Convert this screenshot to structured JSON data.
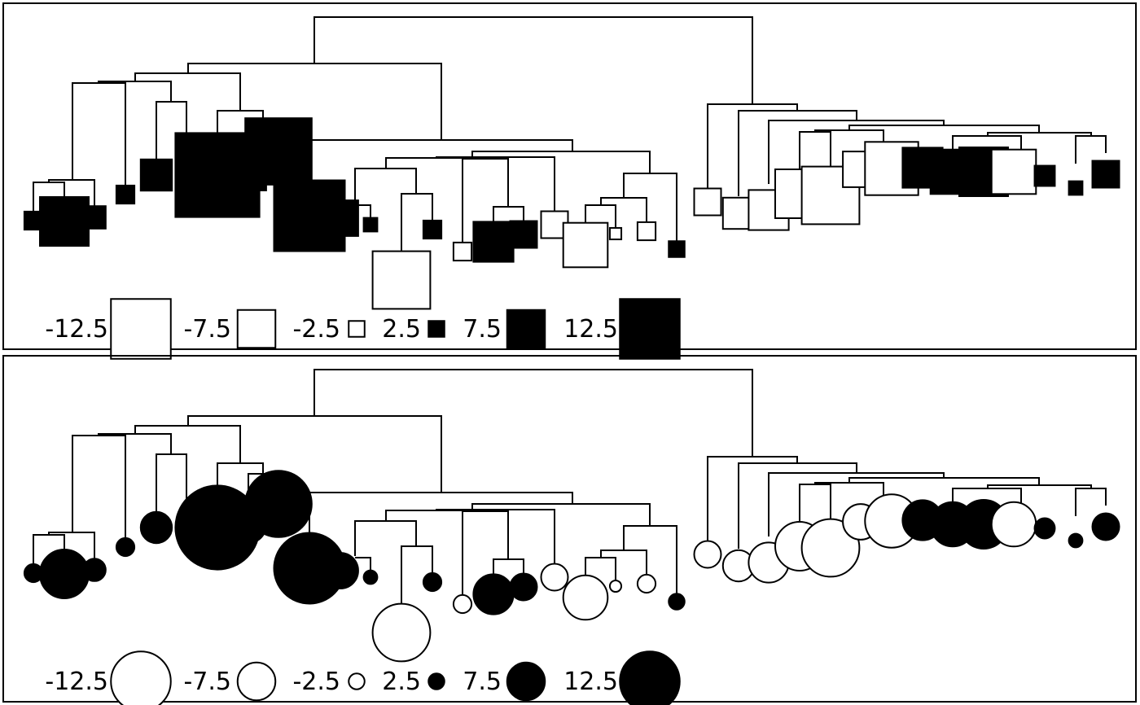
{
  "panels": [
    {
      "marker_shape": "square",
      "legend": [
        {
          "label": "-12.5",
          "value": -12.5
        },
        {
          "label": "-7.5",
          "value": -7.5
        },
        {
          "label": "-2.5",
          "value": -2.5
        },
        {
          "label": "2.5",
          "value": 2.5
        },
        {
          "label": "7.5",
          "value": 7.5
        },
        {
          "label": "12.5",
          "value": 12.5
        }
      ]
    },
    {
      "marker_shape": "circle",
      "legend": [
        {
          "label": "-12.5",
          "value": -12.5
        },
        {
          "label": "-7.5",
          "value": -7.5
        },
        {
          "label": "-2.5",
          "value": -2.5
        },
        {
          "label": "2.5",
          "value": 2.5
        },
        {
          "label": "7.5",
          "value": 7.5
        },
        {
          "label": "12.5",
          "value": 12.5
        }
      ]
    }
  ],
  "tip_values": [
    3,
    10,
    4,
    3,
    6,
    1.5,
    18,
    7,
    14,
    15,
    7,
    2,
    -12,
    3,
    -3,
    8,
    5,
    -5,
    -9,
    -1.5,
    -3,
    2.5,
    -5,
    -6,
    -8,
    -10,
    -12,
    -7,
    -11,
    8,
    9,
    10,
    -9,
    3.5,
    2,
    5,
    -11,
    -10
  ],
  "fill_colors": {
    "positive": "#000000",
    "negative": "#ffffff"
  }
}
